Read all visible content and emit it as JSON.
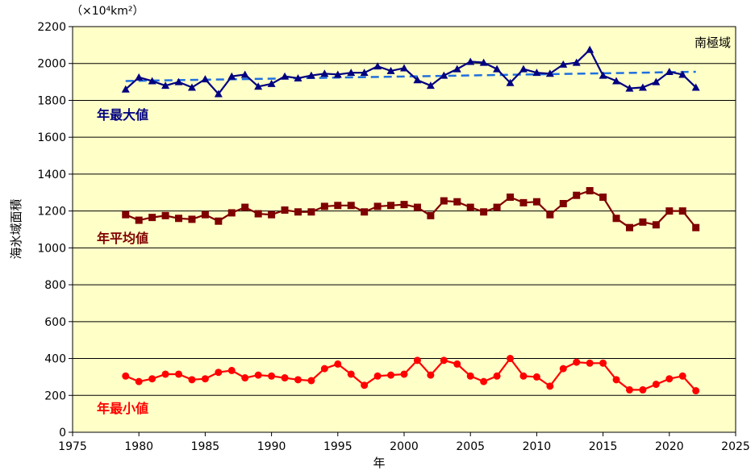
{
  "chart_data": {
    "type": "line",
    "title": "",
    "unit_label": "（×10⁴km²）",
    "region_label": "南極域",
    "xlabel": "年",
    "ylabel": "海氷域面積",
    "xlim": [
      1975,
      2025
    ],
    "ylim": [
      0,
      2200
    ],
    "x_ticks": [
      1975,
      1980,
      1985,
      1990,
      1995,
      2000,
      2005,
      2010,
      2015,
      2020,
      2025
    ],
    "y_ticks": [
      0,
      200,
      400,
      600,
      800,
      1000,
      1200,
      1400,
      1600,
      1800,
      2000,
      2200
    ],
    "grid": "horizontal",
    "x": [
      1979,
      1980,
      1981,
      1982,
      1983,
      1984,
      1985,
      1986,
      1987,
      1988,
      1989,
      1990,
      1991,
      1992,
      1993,
      1994,
      1995,
      1996,
      1997,
      1998,
      1999,
      2000,
      2001,
      2002,
      2003,
      2004,
      2005,
      2006,
      2007,
      2008,
      2009,
      2010,
      2011,
      2012,
      2013,
      2014,
      2015,
      2016,
      2017,
      2018,
      2019,
      2020,
      2021,
      2022
    ],
    "series": [
      {
        "name": "年最大値",
        "color": "#000080",
        "marker": "triangle",
        "values": [
          1860,
          1925,
          1905,
          1880,
          1900,
          1870,
          1915,
          1835,
          1930,
          1940,
          1875,
          1890,
          1930,
          1920,
          1935,
          1945,
          1940,
          1950,
          1950,
          1985,
          1960,
          1975,
          1910,
          1880,
          1935,
          1970,
          2010,
          2005,
          1970,
          1895,
          1970,
          1950,
          1945,
          1995,
          2005,
          2075,
          1935,
          1905,
          1865,
          1870,
          1900,
          1955,
          1940,
          1870
        ]
      },
      {
        "name": "年平均値",
        "color": "#7f0000",
        "marker": "square",
        "values": [
          1180,
          1150,
          1165,
          1175,
          1160,
          1155,
          1180,
          1145,
          1190,
          1220,
          1185,
          1180,
          1205,
          1195,
          1195,
          1225,
          1230,
          1230,
          1195,
          1225,
          1230,
          1235,
          1220,
          1175,
          1255,
          1250,
          1220,
          1195,
          1220,
          1275,
          1245,
          1250,
          1180,
          1240,
          1285,
          1310,
          1275,
          1160,
          1110,
          1140,
          1125,
          1200,
          1200,
          1110
        ]
      },
      {
        "name": "年最小値",
        "color": "#ff0000",
        "marker": "circle",
        "values": [
          305,
          275,
          290,
          315,
          315,
          285,
          290,
          325,
          335,
          295,
          310,
          305,
          295,
          285,
          280,
          345,
          370,
          315,
          255,
          305,
          310,
          315,
          390,
          310,
          390,
          370,
          305,
          275,
          305,
          400,
          305,
          300,
          250,
          345,
          380,
          375,
          375,
          285,
          230,
          230,
          260,
          290,
          305,
          225
        ]
      }
    ],
    "trend": {
      "series": "年最大値",
      "color": "#1f6fe0",
      "style": "dashed",
      "x": [
        1979,
        2022
      ],
      "y": [
        1905,
        1955
      ]
    },
    "colors": {
      "plot_background": "#ffffc8",
      "grid": "#000000",
      "axis": "#000000"
    }
  }
}
